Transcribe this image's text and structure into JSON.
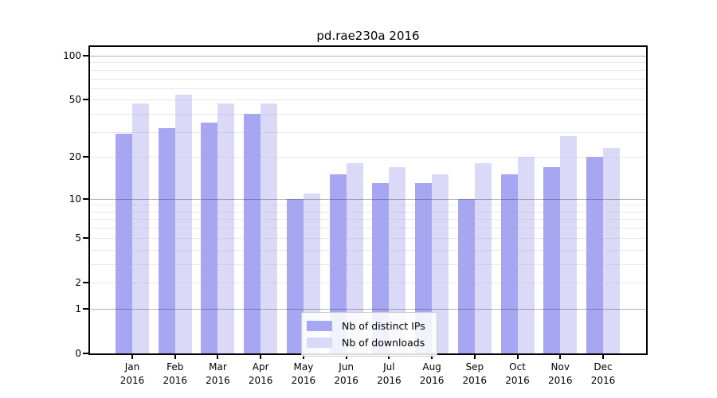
{
  "title": "pd.rae230a 2016",
  "chart_data": {
    "type": "bar",
    "title": "pd.rae230a 2016",
    "categories": [
      "Jan",
      "Feb",
      "Mar",
      "Apr",
      "May",
      "Jun",
      "Jul",
      "Aug",
      "Sep",
      "Oct",
      "Nov",
      "Dec"
    ],
    "x_year": "2016",
    "series": [
      {
        "name": "Nb of distinct IPs",
        "color": "#a6a6f2",
        "values": [
          29,
          32,
          35,
          40,
          10,
          15,
          13,
          13,
          10,
          15,
          17,
          20
        ]
      },
      {
        "name": "Nb of downloads",
        "color": "#dadaf8",
        "values": [
          47,
          54,
          47,
          47,
          11,
          18,
          17,
          15,
          18,
          20,
          28,
          23
        ]
      }
    ],
    "xlabel": "",
    "ylabel": "",
    "y_scale": "log1p",
    "ylim": [
      0,
      114
    ],
    "y_ticks": [
      100,
      50,
      20,
      10,
      5,
      2,
      1,
      0
    ],
    "y_major_gridlines": [
      1,
      10,
      100
    ],
    "y_minor_gridlines": [
      2,
      3,
      4,
      5,
      6,
      7,
      8,
      9,
      20,
      30,
      40,
      50,
      60,
      70,
      80,
      90
    ],
    "grid": true,
    "legend_position": "lower-center",
    "colors": {
      "grid_major": "#b1b1b1",
      "grid_minor": "#e7e7e7",
      "axis": "#000000",
      "background": "#ffffff"
    }
  }
}
